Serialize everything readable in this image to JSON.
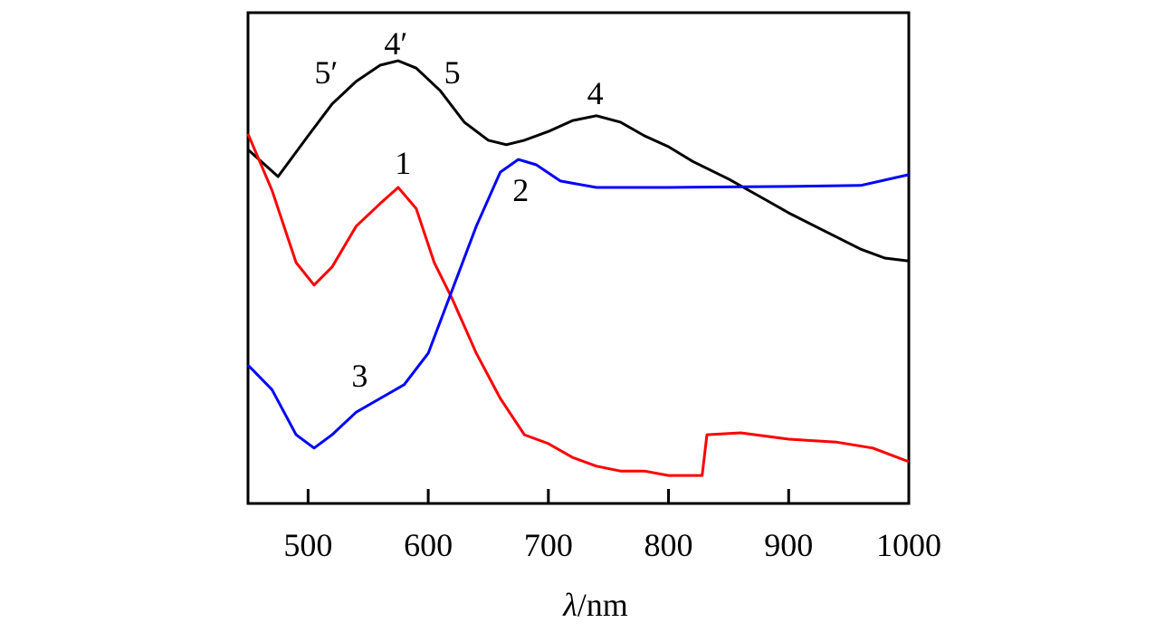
{
  "chart_data": {
    "type": "line",
    "title": "",
    "xlabel_italic": "λ",
    "xlabel_rest": "/nm",
    "ylabel": "",
    "xlim": [
      450,
      1000
    ],
    "ylim": [
      0,
      100
    ],
    "y_ticks_shown": false,
    "grid": false,
    "legend": "none",
    "x_ticks": [
      500,
      600,
      700,
      800,
      900,
      1000
    ],
    "x_tick_labels": [
      "500",
      "600",
      "700",
      "800",
      "900",
      "1000"
    ],
    "series": [
      {
        "color": "#000000",
        "x": [
          450,
          475,
          500,
          520,
          540,
          560,
          575,
          590,
          610,
          630,
          650,
          665,
          680,
          700,
          720,
          740,
          760,
          780,
          800,
          820,
          850,
          880,
          900,
          930,
          960,
          980,
          1000
        ],
        "y": [
          72.1,
          66.6,
          74.9,
          81.4,
          86.0,
          89.3,
          90.2,
          88.7,
          84.1,
          77.7,
          74.0,
          73.1,
          74.0,
          75.8,
          78.0,
          79.0,
          77.7,
          74.9,
          72.7,
          69.7,
          66.1,
          62.0,
          59.2,
          55.5,
          51.8,
          50.0,
          49.4
        ]
      },
      {
        "color": "#ff0000",
        "x": [
          450,
          470,
          490,
          505,
          520,
          540,
          560,
          575,
          590,
          605,
          620,
          640,
          660,
          680,
          700,
          720,
          740,
          760,
          780,
          800,
          828,
          832,
          860,
          900,
          940,
          970,
          1000
        ],
        "y": [
          75.3,
          63.8,
          49.1,
          44.5,
          48.2,
          56.5,
          61.1,
          64.4,
          60.1,
          49.1,
          41.7,
          30.6,
          21.4,
          14.0,
          12.2,
          9.4,
          7.6,
          6.6,
          6.6,
          5.7,
          5.7,
          14.0,
          14.4,
          13.1,
          12.5,
          11.3,
          8.5
        ]
      },
      {
        "color": "#0000ff",
        "x": [
          450,
          470,
          490,
          505,
          520,
          540,
          560,
          580,
          600,
          620,
          640,
          660,
          675,
          690,
          710,
          740,
          800,
          900,
          960,
          1000
        ],
        "y": [
          28.2,
          23.2,
          14.0,
          11.3,
          14.0,
          18.6,
          21.4,
          24.2,
          30.6,
          43.5,
          56.5,
          67.5,
          70.1,
          69.0,
          65.7,
          64.4,
          64.4,
          64.6,
          64.8,
          67.0
        ]
      }
    ],
    "annotations": [
      {
        "text": "5′",
        "x": 515,
        "y": 87.8
      },
      {
        "text": "4′",
        "x": 573,
        "y": 93.7
      },
      {
        "text": "5",
        "x": 620,
        "y": 87.8
      },
      {
        "text": "4",
        "x": 739,
        "y": 83.6
      },
      {
        "text": "1",
        "x": 579,
        "y": 69.4
      },
      {
        "text": "2",
        "x": 677,
        "y": 63.8
      },
      {
        "text": "3",
        "x": 543,
        "y": 26.0
      }
    ]
  }
}
